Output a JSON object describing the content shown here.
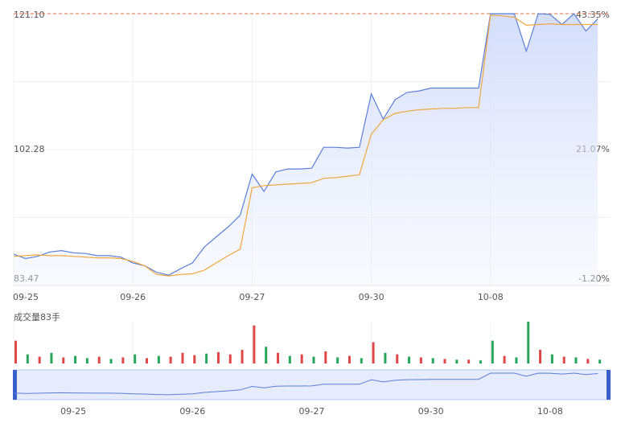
{
  "chart_data": {
    "type": "line",
    "x": [
      0,
      0.1,
      0.2,
      0.3,
      0.4,
      0.5,
      0.6,
      0.7,
      0.8,
      0.9,
      1,
      1.1,
      1.2,
      1.3,
      1.4,
      1.5,
      1.6,
      1.7,
      1.8,
      1.9,
      2,
      2.1,
      2.2,
      2.3,
      2.4,
      2.5,
      2.6,
      2.7,
      2.8,
      2.9,
      3,
      3.1,
      3.2,
      3.3,
      3.4,
      3.5,
      3.6,
      3.7,
      3.8,
      3.9,
      4,
      4.1,
      4.2,
      4.3,
      4.4,
      4.5,
      4.6,
      4.7,
      4.8,
      4.9
    ],
    "xlim": [
      0,
      5
    ],
    "xticks": [
      {
        "value": 0,
        "label": "09-25"
      },
      {
        "value": 1,
        "label": "09-26"
      },
      {
        "value": 2,
        "label": "09-27"
      },
      {
        "value": 3,
        "label": "09-30"
      },
      {
        "value": 4,
        "label": "10-08"
      }
    ],
    "ylim": [
      83.47,
      121.1
    ],
    "yticks": [
      83.47,
      102.28,
      {
        "value": 121.1,
        "label": "121.10"
      }
    ],
    "y2lim": [
      -1.2,
      43.35
    ],
    "y2ticks": [
      {
        "value": -1.2,
        "label": "-1.20%"
      },
      {
        "value": 21.07,
        "label": "21.07%"
      },
      {
        "value": 43.35,
        "label": "43.35%"
      }
    ],
    "grid": true,
    "series": [
      {
        "color": "#5b7fd6",
        "values": [
          87.8,
          87.2,
          87.5,
          88.1,
          88.3,
          88.0,
          87.9,
          87.6,
          87.6,
          87.4,
          86.6,
          86.2,
          85.3,
          84.9,
          85.8,
          86.6,
          88.8,
          90.2,
          91.6,
          93.2,
          98.9,
          96.5,
          99.2,
          99.6,
          99.6,
          99.7,
          102.6,
          102.6,
          102.5,
          102.6,
          110.0,
          106.5,
          109.2,
          110.2,
          110.4,
          110.8,
          110.8,
          110.8,
          110.8,
          110.8,
          121.1,
          121.1,
          121.1,
          115.9,
          121.1,
          121.0,
          119.6,
          121.1,
          118.7,
          120.4
        ]
      },
      {
        "color": "#f0a640",
        "values": [
          87.5,
          87.6,
          87.7,
          87.6,
          87.6,
          87.5,
          87.4,
          87.3,
          87.3,
          87.2,
          86.8,
          86.2,
          85.0,
          84.8,
          85.0,
          85.1,
          85.6,
          86.6,
          87.6,
          88.5,
          97.0,
          97.3,
          97.4,
          97.5,
          97.6,
          97.7,
          98.3,
          98.4,
          98.6,
          98.8,
          104.4,
          106.4,
          107.3,
          107.6,
          107.8,
          107.9,
          108.0,
          108.0,
          108.1,
          108.1,
          120.9,
          120.8,
          120.6,
          119.5,
          119.6,
          119.7,
          119.6,
          119.6,
          119.6,
          119.6
        ]
      }
    ],
    "volume": {
      "title": "成交量83手",
      "values": [
        30,
        12,
        9,
        14,
        8,
        10,
        7,
        9,
        6,
        8,
        12,
        7,
        10,
        9,
        14,
        11,
        13,
        15,
        12,
        18,
        50,
        22,
        14,
        10,
        12,
        9,
        16,
        8,
        10,
        7,
        28,
        14,
        12,
        9,
        8,
        7,
        6,
        5,
        5,
        4,
        30,
        10,
        8,
        55,
        18,
        12,
        9,
        8,
        6,
        5
      ],
      "colors": [
        "#e04848",
        "#26a65b",
        "#e04848",
        "#26a65b",
        "#e04848",
        "#26a65b",
        "#26a65b",
        "#e04848",
        "#26a65b",
        "#e04848",
        "#26a65b",
        "#e04848",
        "#26a65b",
        "#e04848",
        "#e04848",
        "#e04848",
        "#26a65b",
        "#e04848",
        "#e04848",
        "#e04848",
        "#e04848",
        "#26a65b",
        "#e04848",
        "#26a65b",
        "#e04848",
        "#26a65b",
        "#e04848",
        "#26a65b",
        "#e04848",
        "#26a65b",
        "#e04848",
        "#26a65b",
        "#e04848",
        "#26a65b",
        "#e04848",
        "#26a65b",
        "#e04848",
        "#26a65b",
        "#e04848",
        "#26a65b",
        "#26a65b",
        "#e04848",
        "#26a65b",
        "#26a65b",
        "#e04848",
        "#26a65b",
        "#e04848",
        "#26a65b",
        "#e04848",
        "#26a65b"
      ]
    }
  }
}
